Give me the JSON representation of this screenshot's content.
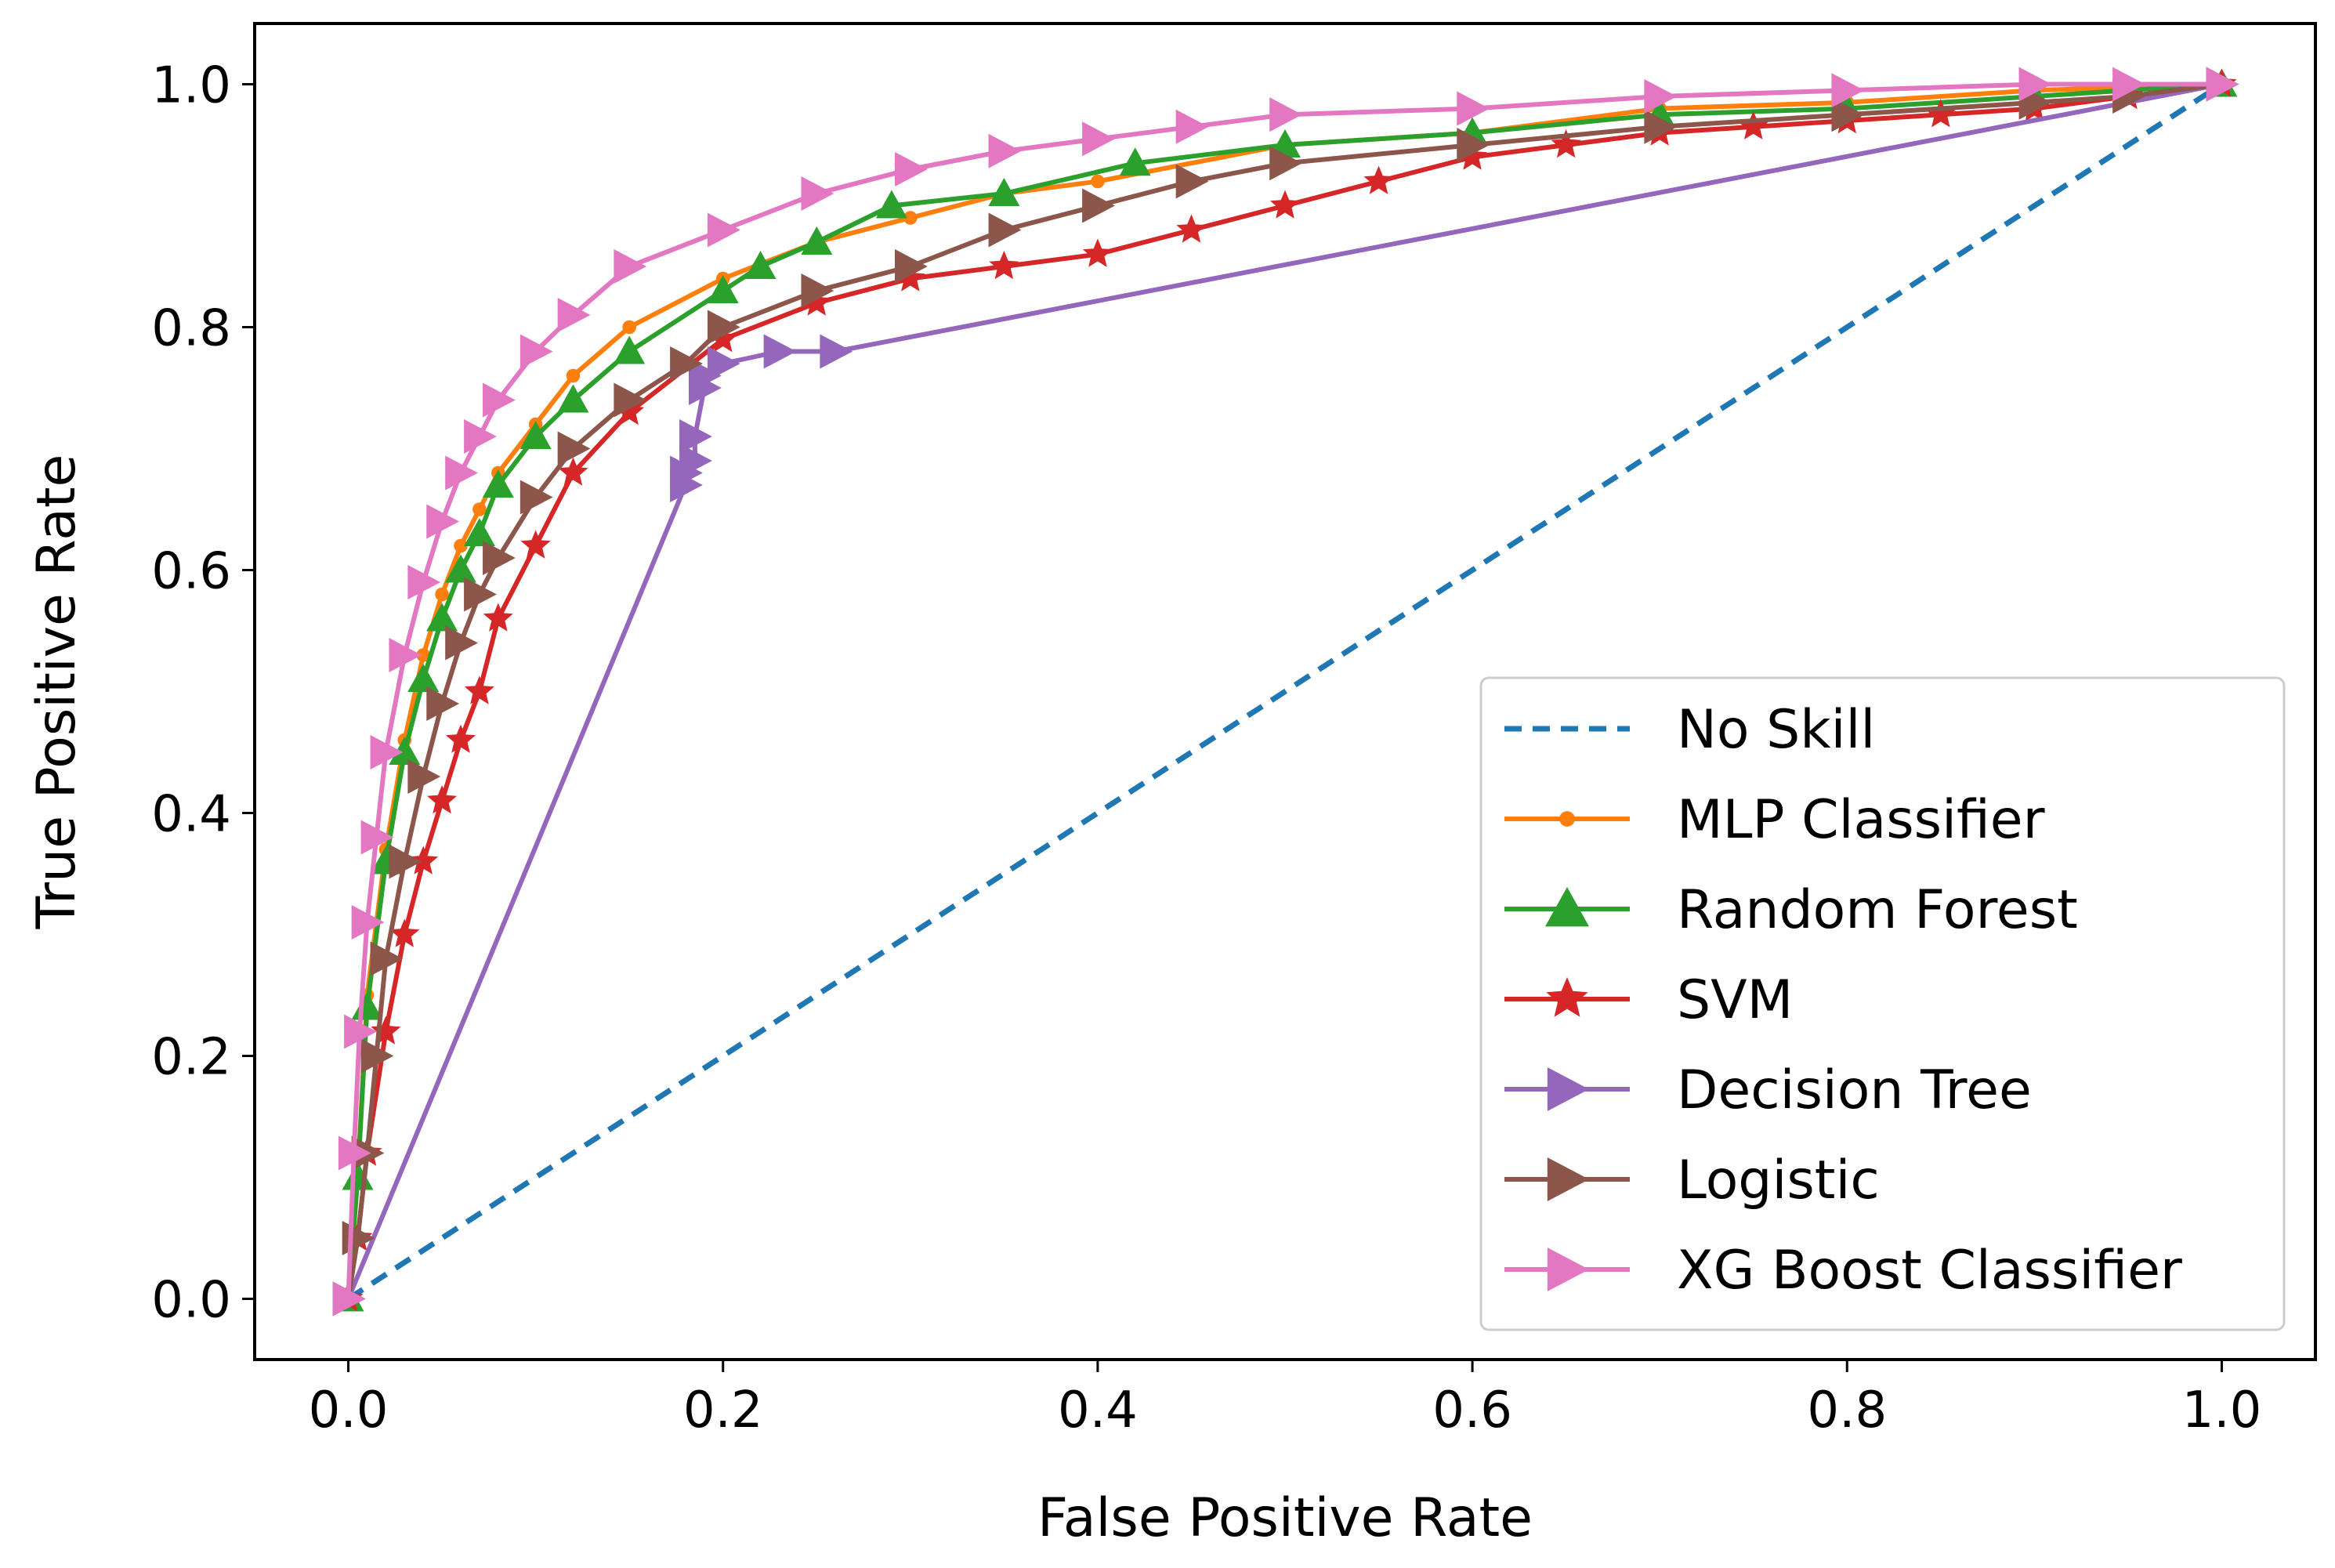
{
  "chart_data": {
    "type": "line",
    "title": "",
    "xlabel": "False Positive Rate",
    "ylabel": "True Positive Rate",
    "xlim": [
      -0.05,
      1.05
    ],
    "ylim": [
      -0.05,
      1.05
    ],
    "xticks": [
      0.0,
      0.2,
      0.4,
      0.6,
      0.8,
      1.0
    ],
    "xtick_labels": [
      "0.0",
      "0.2",
      "0.4",
      "0.6",
      "0.8",
      "1.0"
    ],
    "yticks": [
      0.0,
      0.2,
      0.4,
      0.6,
      0.8,
      1.0
    ],
    "ytick_labels": [
      "0.0",
      "0.2",
      "0.4",
      "0.6",
      "0.8",
      "1.0"
    ],
    "grid": false,
    "legend_position": "lower-right",
    "series": [
      {
        "name": "No Skill",
        "color": "#1f77b4",
        "style": "dashed",
        "marker": "none",
        "x": [
          0.0,
          1.0
        ],
        "y": [
          0.0,
          1.0
        ]
      },
      {
        "name": "MLP Classifier",
        "color": "#ff7f0e",
        "style": "solid",
        "marker": "circle",
        "x": [
          0.0,
          0.005,
          0.01,
          0.02,
          0.03,
          0.04,
          0.05,
          0.06,
          0.07,
          0.08,
          0.1,
          0.12,
          0.15,
          0.2,
          0.25,
          0.3,
          0.35,
          0.4,
          0.5,
          0.6,
          0.7,
          0.8,
          0.9,
          1.0
        ],
        "y": [
          0.0,
          0.1,
          0.25,
          0.37,
          0.46,
          0.53,
          0.58,
          0.62,
          0.65,
          0.68,
          0.72,
          0.76,
          0.8,
          0.84,
          0.87,
          0.89,
          0.91,
          0.92,
          0.95,
          0.96,
          0.98,
          0.985,
          0.995,
          1.0
        ]
      },
      {
        "name": "Random Forest",
        "color": "#2ca02c",
        "style": "solid",
        "marker": "triangle-up",
        "x": [
          0.0,
          0.005,
          0.01,
          0.02,
          0.03,
          0.04,
          0.05,
          0.06,
          0.07,
          0.08,
          0.1,
          0.12,
          0.15,
          0.2,
          0.22,
          0.25,
          0.29,
          0.35,
          0.42,
          0.5,
          0.6,
          0.7,
          0.8,
          0.9,
          1.0
        ],
        "y": [
          0.0,
          0.1,
          0.24,
          0.36,
          0.45,
          0.51,
          0.56,
          0.6,
          0.63,
          0.67,
          0.71,
          0.74,
          0.78,
          0.83,
          0.85,
          0.87,
          0.9,
          0.91,
          0.935,
          0.95,
          0.96,
          0.975,
          0.98,
          0.99,
          1.0
        ]
      },
      {
        "name": "SVM",
        "color": "#d62728",
        "style": "solid",
        "marker": "star",
        "x": [
          0.0,
          0.005,
          0.01,
          0.02,
          0.03,
          0.04,
          0.05,
          0.06,
          0.07,
          0.08,
          0.1,
          0.12,
          0.15,
          0.2,
          0.25,
          0.3,
          0.35,
          0.4,
          0.45,
          0.5,
          0.55,
          0.6,
          0.65,
          0.7,
          0.75,
          0.8,
          0.85,
          0.9,
          0.95,
          1.0
        ],
        "y": [
          0.0,
          0.05,
          0.12,
          0.22,
          0.3,
          0.36,
          0.41,
          0.46,
          0.5,
          0.56,
          0.62,
          0.68,
          0.73,
          0.79,
          0.82,
          0.84,
          0.85,
          0.86,
          0.88,
          0.9,
          0.92,
          0.94,
          0.95,
          0.96,
          0.965,
          0.97,
          0.975,
          0.98,
          0.99,
          1.0
        ]
      },
      {
        "name": "Decision Tree",
        "color": "#9467bd",
        "style": "solid",
        "marker": "triangle-right",
        "x": [
          0.0,
          0.18,
          0.18,
          0.185,
          0.185,
          0.19,
          0.19,
          0.2,
          0.23,
          0.26,
          1.0
        ],
        "y": [
          0.0,
          0.67,
          0.68,
          0.69,
          0.71,
          0.75,
          0.76,
          0.77,
          0.78,
          0.78,
          1.0
        ]
      },
      {
        "name": "Logistic",
        "color": "#8c564b",
        "style": "solid",
        "marker": "triangle-right",
        "x": [
          0.0,
          0.005,
          0.01,
          0.015,
          0.02,
          0.03,
          0.04,
          0.05,
          0.06,
          0.07,
          0.08,
          0.1,
          0.12,
          0.15,
          0.18,
          0.2,
          0.25,
          0.3,
          0.35,
          0.4,
          0.45,
          0.5,
          0.6,
          0.7,
          0.8,
          0.9,
          0.95,
          1.0
        ],
        "y": [
          0.0,
          0.05,
          0.12,
          0.2,
          0.28,
          0.36,
          0.43,
          0.49,
          0.54,
          0.58,
          0.61,
          0.66,
          0.7,
          0.74,
          0.77,
          0.8,
          0.83,
          0.85,
          0.88,
          0.9,
          0.92,
          0.935,
          0.95,
          0.965,
          0.975,
          0.985,
          0.99,
          1.0
        ]
      },
      {
        "name": "XG Boost Classifier",
        "color": "#e377c2",
        "style": "solid",
        "marker": "triangle-right",
        "x": [
          0.0,
          0.003,
          0.006,
          0.01,
          0.015,
          0.02,
          0.03,
          0.04,
          0.05,
          0.06,
          0.07,
          0.08,
          0.1,
          0.12,
          0.15,
          0.2,
          0.25,
          0.3,
          0.35,
          0.4,
          0.45,
          0.5,
          0.6,
          0.7,
          0.8,
          0.9,
          0.95,
          1.0
        ],
        "y": [
          0.0,
          0.12,
          0.22,
          0.31,
          0.38,
          0.45,
          0.53,
          0.59,
          0.64,
          0.68,
          0.71,
          0.74,
          0.78,
          0.81,
          0.85,
          0.88,
          0.91,
          0.93,
          0.945,
          0.955,
          0.965,
          0.975,
          0.98,
          0.99,
          0.995,
          1.0,
          1.0,
          1.0
        ]
      }
    ]
  }
}
